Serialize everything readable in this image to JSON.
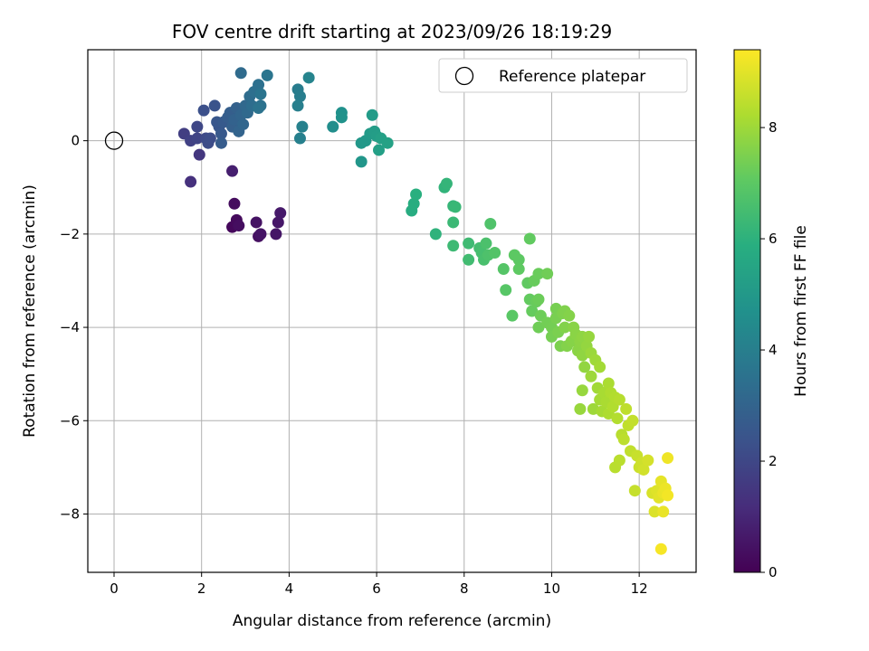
{
  "chart_data": {
    "type": "scatter",
    "title": "FOV centre drift starting at 2023/09/26 18:19:29",
    "xlabel": "Angular distance from reference (arcmin)",
    "ylabel": "Rotation from reference (arcmin)",
    "xlim": [
      -0.6,
      13.3
    ],
    "ylim": [
      -9.25,
      1.95
    ],
    "xticks": [
      0,
      2,
      4,
      6,
      8,
      10,
      12
    ],
    "yticks": [
      0,
      -2,
      -4,
      -6,
      -8
    ],
    "grid": true,
    "legend": {
      "position": "top-right",
      "entries": [
        "Reference platepar"
      ]
    },
    "reference_point": {
      "x": 0,
      "y": 0
    },
    "colorbar": {
      "label": "Hours from first FF file",
      "min": 0,
      "max": 9.4,
      "ticks": [
        0,
        2,
        4,
        6,
        8
      ],
      "colormap": "viridis"
    },
    "points": [
      {
        "x": 2.7,
        "y": -1.85,
        "h": 0.2
      },
      {
        "x": 2.8,
        "y": -1.7,
        "h": 0.25
      },
      {
        "x": 2.75,
        "y": -1.35,
        "h": 0.3
      },
      {
        "x": 2.85,
        "y": -1.82,
        "h": 0.35
      },
      {
        "x": 3.3,
        "y": -2.05,
        "h": 0.4
      },
      {
        "x": 3.25,
        "y": -1.75,
        "h": 0.45
      },
      {
        "x": 3.35,
        "y": -2.0,
        "h": 0.5
      },
      {
        "x": 3.7,
        "y": -2.0,
        "h": 0.55
      },
      {
        "x": 3.75,
        "y": -1.75,
        "h": 0.6
      },
      {
        "x": 3.8,
        "y": -1.55,
        "h": 0.65
      },
      {
        "x": 2.7,
        "y": -0.65,
        "h": 0.8
      },
      {
        "x": 1.75,
        "y": -0.88,
        "h": 1.3
      },
      {
        "x": 1.95,
        "y": -0.3,
        "h": 1.5
      },
      {
        "x": 1.6,
        "y": 0.15,
        "h": 1.7
      },
      {
        "x": 1.75,
        "y": 0.0,
        "h": 1.8
      },
      {
        "x": 1.9,
        "y": 0.05,
        "h": 1.9
      },
      {
        "x": 1.9,
        "y": 0.3,
        "h": 2.0
      },
      {
        "x": 2.1,
        "y": 0.05,
        "h": 2.1
      },
      {
        "x": 2.15,
        "y": -0.05,
        "h": 2.15
      },
      {
        "x": 2.2,
        "y": 0.05,
        "h": 2.2
      },
      {
        "x": 2.05,
        "y": 0.65,
        "h": 2.3
      },
      {
        "x": 2.3,
        "y": 0.75,
        "h": 2.4
      },
      {
        "x": 2.4,
        "y": 0.3,
        "h": 2.5
      },
      {
        "x": 2.35,
        "y": 0.4,
        "h": 2.55
      },
      {
        "x": 2.45,
        "y": 0.15,
        "h": 2.6
      },
      {
        "x": 2.5,
        "y": 0.4,
        "h": 2.65
      },
      {
        "x": 2.45,
        "y": -0.05,
        "h": 2.7
      },
      {
        "x": 2.6,
        "y": 0.5,
        "h": 2.75
      },
      {
        "x": 2.65,
        "y": 0.6,
        "h": 2.8
      },
      {
        "x": 2.7,
        "y": 0.3,
        "h": 2.85
      },
      {
        "x": 2.8,
        "y": 0.7,
        "h": 2.9
      },
      {
        "x": 2.75,
        "y": 0.45,
        "h": 2.95
      },
      {
        "x": 2.85,
        "y": 0.2,
        "h": 3.0
      },
      {
        "x": 2.9,
        "y": 0.55,
        "h": 3.05
      },
      {
        "x": 2.95,
        "y": 0.35,
        "h": 3.1
      },
      {
        "x": 3.0,
        "y": 0.75,
        "h": 3.15
      },
      {
        "x": 3.05,
        "y": 0.6,
        "h": 3.2
      },
      {
        "x": 2.9,
        "y": 1.45,
        "h": 3.25
      },
      {
        "x": 3.1,
        "y": 0.95,
        "h": 3.3
      },
      {
        "x": 3.15,
        "y": 0.75,
        "h": 3.35
      },
      {
        "x": 3.2,
        "y": 1.05,
        "h": 3.4
      },
      {
        "x": 3.3,
        "y": 1.2,
        "h": 3.45
      },
      {
        "x": 3.35,
        "y": 0.75,
        "h": 3.5
      },
      {
        "x": 3.3,
        "y": 0.7,
        "h": 3.55
      },
      {
        "x": 3.35,
        "y": 1.0,
        "h": 3.6
      },
      {
        "x": 3.5,
        "y": 1.4,
        "h": 3.65
      },
      {
        "x": 4.2,
        "y": 1.1,
        "h": 3.9
      },
      {
        "x": 4.25,
        "y": 0.95,
        "h": 3.95
      },
      {
        "x": 4.2,
        "y": 0.75,
        "h": 4.0
      },
      {
        "x": 4.25,
        "y": 0.05,
        "h": 4.05
      },
      {
        "x": 4.3,
        "y": 0.3,
        "h": 4.1
      },
      {
        "x": 4.45,
        "y": 1.35,
        "h": 4.2
      },
      {
        "x": 5.0,
        "y": 0.3,
        "h": 4.6
      },
      {
        "x": 5.2,
        "y": 0.6,
        "h": 4.7
      },
      {
        "x": 5.2,
        "y": 0.5,
        "h": 4.75
      },
      {
        "x": 5.65,
        "y": -0.45,
        "h": 4.9
      },
      {
        "x": 5.65,
        "y": -0.05,
        "h": 4.95
      },
      {
        "x": 5.75,
        "y": 0.0,
        "h": 5.0
      },
      {
        "x": 5.85,
        "y": 0.15,
        "h": 5.05
      },
      {
        "x": 5.9,
        "y": 0.55,
        "h": 5.1
      },
      {
        "x": 5.95,
        "y": 0.2,
        "h": 5.15
      },
      {
        "x": 6.0,
        "y": 0.1,
        "h": 5.2
      },
      {
        "x": 6.05,
        "y": -0.2,
        "h": 5.25
      },
      {
        "x": 6.1,
        "y": 0.05,
        "h": 5.3
      },
      {
        "x": 6.25,
        "y": -0.05,
        "h": 5.35
      },
      {
        "x": 6.8,
        "y": -1.5,
        "h": 5.8
      },
      {
        "x": 6.85,
        "y": -1.35,
        "h": 5.85
      },
      {
        "x": 6.9,
        "y": -1.15,
        "h": 5.9
      },
      {
        "x": 7.35,
        "y": -2.0,
        "h": 6.05
      },
      {
        "x": 7.55,
        "y": -1.0,
        "h": 6.1
      },
      {
        "x": 7.6,
        "y": -0.92,
        "h": 6.15
      },
      {
        "x": 7.75,
        "y": -1.4,
        "h": 6.2
      },
      {
        "x": 7.8,
        "y": -1.42,
        "h": 6.25
      },
      {
        "x": 7.75,
        "y": -1.75,
        "h": 6.3
      },
      {
        "x": 7.75,
        "y": -2.25,
        "h": 6.35
      },
      {
        "x": 8.1,
        "y": -2.2,
        "h": 6.4
      },
      {
        "x": 8.1,
        "y": -2.55,
        "h": 6.45
      },
      {
        "x": 8.35,
        "y": -2.3,
        "h": 6.5
      },
      {
        "x": 8.4,
        "y": -2.4,
        "h": 6.55
      },
      {
        "x": 8.45,
        "y": -2.55,
        "h": 6.6
      },
      {
        "x": 8.5,
        "y": -2.2,
        "h": 6.65
      },
      {
        "x": 8.55,
        "y": -2.45,
        "h": 6.7
      },
      {
        "x": 8.6,
        "y": -1.78,
        "h": 6.75
      },
      {
        "x": 8.7,
        "y": -2.4,
        "h": 6.8
      },
      {
        "x": 8.9,
        "y": -2.75,
        "h": 6.85
      },
      {
        "x": 8.95,
        "y": -3.2,
        "h": 6.9
      },
      {
        "x": 9.1,
        "y": -3.75,
        "h": 6.95
      },
      {
        "x": 9.15,
        "y": -2.45,
        "h": 7.0
      },
      {
        "x": 9.25,
        "y": -2.55,
        "h": 7.02
      },
      {
        "x": 9.25,
        "y": -2.75,
        "h": 7.05
      },
      {
        "x": 9.45,
        "y": -3.05,
        "h": 7.08
      },
      {
        "x": 9.5,
        "y": -2.1,
        "h": 7.1
      },
      {
        "x": 9.5,
        "y": -3.4,
        "h": 7.12
      },
      {
        "x": 9.55,
        "y": -3.65,
        "h": 7.15
      },
      {
        "x": 9.6,
        "y": -3.0,
        "h": 7.18
      },
      {
        "x": 9.65,
        "y": -3.45,
        "h": 7.2
      },
      {
        "x": 9.7,
        "y": -2.85,
        "h": 7.22
      },
      {
        "x": 9.7,
        "y": -3.4,
        "h": 7.25
      },
      {
        "x": 9.75,
        "y": -3.75,
        "h": 7.28
      },
      {
        "x": 9.7,
        "y": -4.0,
        "h": 7.3
      },
      {
        "x": 9.9,
        "y": -2.85,
        "h": 7.32
      },
      {
        "x": 9.9,
        "y": -3.9,
        "h": 7.35
      },
      {
        "x": 10.0,
        "y": -4.0,
        "h": 7.38
      },
      {
        "x": 10.0,
        "y": -4.2,
        "h": 7.4
      },
      {
        "x": 10.1,
        "y": -3.6,
        "h": 7.42
      },
      {
        "x": 10.1,
        "y": -3.8,
        "h": 7.45
      },
      {
        "x": 10.15,
        "y": -4.1,
        "h": 7.48
      },
      {
        "x": 10.2,
        "y": -4.4,
        "h": 7.5
      },
      {
        "x": 10.25,
        "y": -3.7,
        "h": 7.52
      },
      {
        "x": 10.3,
        "y": -3.65,
        "h": 7.55
      },
      {
        "x": 10.3,
        "y": -4.0,
        "h": 7.58
      },
      {
        "x": 10.35,
        "y": -4.4,
        "h": 7.6
      },
      {
        "x": 10.4,
        "y": -3.75,
        "h": 7.62
      },
      {
        "x": 10.45,
        "y": -4.3,
        "h": 7.65
      },
      {
        "x": 10.5,
        "y": -4.0,
        "h": 7.68
      },
      {
        "x": 10.55,
        "y": -4.15,
        "h": 7.7
      },
      {
        "x": 10.6,
        "y": -4.5,
        "h": 7.72
      },
      {
        "x": 10.65,
        "y": -4.3,
        "h": 7.75
      },
      {
        "x": 10.7,
        "y": -4.2,
        "h": 7.78
      },
      {
        "x": 10.7,
        "y": -4.6,
        "h": 7.8
      },
      {
        "x": 10.75,
        "y": -4.85,
        "h": 7.82
      },
      {
        "x": 10.8,
        "y": -4.4,
        "h": 7.85
      },
      {
        "x": 10.85,
        "y": -4.2,
        "h": 7.88
      },
      {
        "x": 10.7,
        "y": -5.35,
        "h": 7.9
      },
      {
        "x": 10.65,
        "y": -5.75,
        "h": 7.92
      },
      {
        "x": 10.9,
        "y": -4.55,
        "h": 7.95
      },
      {
        "x": 10.9,
        "y": -5.05,
        "h": 7.98
      },
      {
        "x": 10.95,
        "y": -5.75,
        "h": 8.0
      },
      {
        "x": 11.0,
        "y": -4.7,
        "h": 8.02
      },
      {
        "x": 11.05,
        "y": -5.3,
        "h": 8.05
      },
      {
        "x": 11.1,
        "y": -4.85,
        "h": 8.08
      },
      {
        "x": 11.1,
        "y": -5.55,
        "h": 8.1
      },
      {
        "x": 11.15,
        "y": -5.8,
        "h": 8.12
      },
      {
        "x": 11.2,
        "y": -5.4,
        "h": 8.15
      },
      {
        "x": 11.25,
        "y": -5.6,
        "h": 8.18
      },
      {
        "x": 11.3,
        "y": -5.2,
        "h": 8.2
      },
      {
        "x": 11.3,
        "y": -5.85,
        "h": 8.22
      },
      {
        "x": 11.35,
        "y": -5.4,
        "h": 8.25
      },
      {
        "x": 11.4,
        "y": -5.7,
        "h": 8.28
      },
      {
        "x": 11.45,
        "y": -5.5,
        "h": 8.3
      },
      {
        "x": 11.5,
        "y": -5.95,
        "h": 8.32
      },
      {
        "x": 11.55,
        "y": -5.55,
        "h": 8.35
      },
      {
        "x": 11.6,
        "y": -6.3,
        "h": 8.38
      },
      {
        "x": 11.45,
        "y": -7.0,
        "h": 8.4
      },
      {
        "x": 11.55,
        "y": -6.85,
        "h": 8.42
      },
      {
        "x": 11.65,
        "y": -6.4,
        "h": 8.45
      },
      {
        "x": 11.7,
        "y": -5.75,
        "h": 8.48
      },
      {
        "x": 11.75,
        "y": -6.1,
        "h": 8.5
      },
      {
        "x": 11.8,
        "y": -6.65,
        "h": 8.52
      },
      {
        "x": 11.85,
        "y": -6.0,
        "h": 8.55
      },
      {
        "x": 11.9,
        "y": -7.5,
        "h": 8.58
      },
      {
        "x": 11.95,
        "y": -6.75,
        "h": 8.6
      },
      {
        "x": 12.0,
        "y": -7.0,
        "h": 8.65
      },
      {
        "x": 12.05,
        "y": -6.9,
        "h": 8.7
      },
      {
        "x": 12.1,
        "y": -7.05,
        "h": 8.75
      },
      {
        "x": 12.2,
        "y": -6.85,
        "h": 8.8
      },
      {
        "x": 12.3,
        "y": -7.55,
        "h": 8.85
      },
      {
        "x": 12.35,
        "y": -7.95,
        "h": 8.9
      },
      {
        "x": 12.4,
        "y": -7.5,
        "h": 8.95
      },
      {
        "x": 12.45,
        "y": -7.65,
        "h": 9.0
      },
      {
        "x": 12.5,
        "y": -7.3,
        "h": 9.05
      },
      {
        "x": 12.55,
        "y": -7.95,
        "h": 9.1
      },
      {
        "x": 12.55,
        "y": -7.55,
        "h": 9.12
      },
      {
        "x": 12.6,
        "y": -7.45,
        "h": 9.15
      },
      {
        "x": 12.65,
        "y": -6.8,
        "h": 9.2
      },
      {
        "x": 12.65,
        "y": -7.6,
        "h": 9.25
      },
      {
        "x": 12.5,
        "y": -8.75,
        "h": 9.3
      }
    ]
  }
}
